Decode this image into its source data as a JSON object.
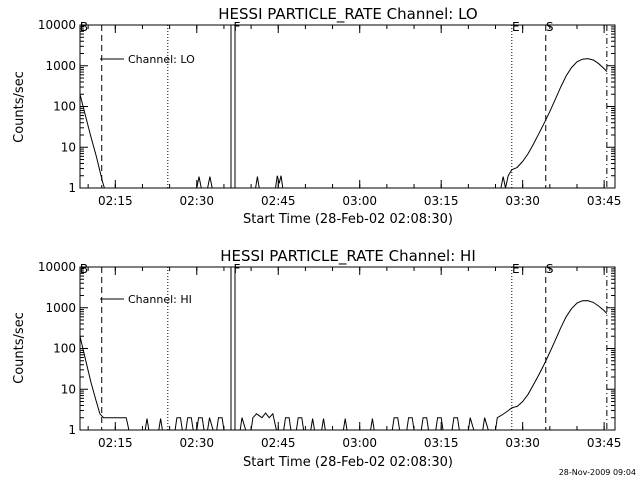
{
  "chart_data": [
    {
      "type": "line",
      "title": "HESSI PARTICLE_RATE Channel: LO",
      "xlabel": "Start Time (28-Feb-02 02:08:30)",
      "ylabel": "Counts/sec",
      "yscale": "log",
      "ylim": [
        1,
        10000
      ],
      "xlim_minutes_after_start": [
        0,
        98.5
      ],
      "x_ticks": [
        "02:15",
        "02:30",
        "02:45",
        "03:00",
        "03:15",
        "03:30",
        "03:45"
      ],
      "y_ticks": [
        "1",
        "10",
        "100",
        "1000",
        "10000"
      ],
      "legend": {
        "label": "Channel: LO",
        "placement": "top-left"
      },
      "markers": [
        {
          "label": "B",
          "style": "dashed",
          "time": "02:08:30"
        },
        {
          "label": "",
          "style": "dashed",
          "time": "02:12:30"
        },
        {
          "label": "",
          "style": "dotted",
          "time": "02:24:40"
        },
        {
          "label": "F",
          "style": "solid-double",
          "time": "02:36:40"
        },
        {
          "label": "E",
          "style": "dotted",
          "time": "03:28:00"
        },
        {
          "label": "S",
          "style": "dashed",
          "time": "03:34:15"
        },
        {
          "label": "",
          "style": "dash-dot",
          "time": "03:45:30"
        }
      ],
      "series": [
        {
          "values": [
            [
              "02:08:30",
              200
            ],
            [
              "02:09:30",
              60
            ],
            [
              "02:10:30",
              18
            ],
            [
              "02:11:30",
              6
            ],
            [
              "02:12:10",
              2.6
            ],
            [
              "02:12:40",
              1.4
            ],
            [
              "02:13:00",
              1.0
            ],
            [
              "02:30:00",
              1
            ],
            [
              "02:30:25",
              1.9
            ],
            [
              "02:30:50",
              1
            ],
            [
              "02:32:00",
              1
            ],
            [
              "02:32:25",
              1.9
            ],
            [
              "02:32:50",
              1
            ],
            [
              "02:40:50",
              1
            ],
            [
              "02:41:10",
              1.9
            ],
            [
              "02:41:30",
              1
            ],
            [
              "02:44:30",
              1
            ],
            [
              "02:44:50",
              2
            ],
            [
              "02:45:10",
              1.3
            ],
            [
              "02:45:30",
              2
            ],
            [
              "02:45:50",
              1
            ],
            [
              "03:26:00",
              1
            ],
            [
              "03:26:25",
              1.9
            ],
            [
              "03:26:50",
              1
            ],
            [
              "03:27:20",
              2
            ],
            [
              "03:28:00",
              2.8
            ],
            [
              "03:29:00",
              3.2
            ],
            [
              "03:30:00",
              4.5
            ],
            [
              "03:31:00",
              7
            ],
            [
              "03:32:00",
              12
            ],
            [
              "03:33:00",
              22
            ],
            [
              "03:34:00",
              40
            ],
            [
              "03:35:00",
              75
            ],
            [
              "03:36:00",
              150
            ],
            [
              "03:37:00",
              300
            ],
            [
              "03:38:00",
              560
            ],
            [
              "03:39:00",
              900
            ],
            [
              "03:40:00",
              1250
            ],
            [
              "03:41:00",
              1450
            ],
            [
              "03:42:00",
              1500
            ],
            [
              "03:43:00",
              1380
            ],
            [
              "03:44:00",
              1120
            ],
            [
              "03:45:00",
              850
            ],
            [
              "03:45:30",
              720
            ]
          ]
        }
      ]
    },
    {
      "type": "line",
      "title": "HESSI PARTICLE_RATE Channel: HI",
      "xlabel": "Start Time (28-Feb-02 02:08:30)",
      "ylabel": "Counts/sec",
      "yscale": "log",
      "ylim": [
        1,
        10000
      ],
      "xlim_minutes_after_start": [
        0,
        98.5
      ],
      "x_ticks": [
        "02:15",
        "02:30",
        "02:45",
        "03:00",
        "03:15",
        "03:30",
        "03:45"
      ],
      "y_ticks": [
        "1",
        "10",
        "100",
        "1000",
        "10000"
      ],
      "legend": {
        "label": "Channel: HI",
        "placement": "top-left"
      },
      "markers": [
        {
          "label": "B",
          "style": "dashed",
          "time": "02:08:30"
        },
        {
          "label": "",
          "style": "dashed",
          "time": "02:12:30"
        },
        {
          "label": "",
          "style": "dotted",
          "time": "02:24:40"
        },
        {
          "label": "F",
          "style": "solid-double",
          "time": "02:36:40"
        },
        {
          "label": "E",
          "style": "dotted",
          "time": "03:28:00"
        },
        {
          "label": "S",
          "style": "dashed",
          "time": "03:34:15"
        },
        {
          "label": "",
          "style": "dash-dot",
          "time": "03:45:30"
        }
      ],
      "series": [
        {
          "values": [
            [
              "02:08:30",
              200
            ],
            [
              "02:09:30",
              55
            ],
            [
              "02:10:30",
              15
            ],
            [
              "02:11:30",
              5
            ],
            [
              "02:12:10",
              2.5
            ],
            [
              "02:12:50",
              2
            ],
            [
              "02:17:00",
              2
            ],
            [
              "02:17:30",
              1
            ],
            [
              "02:20:30",
              1
            ],
            [
              "02:20:50",
              1.9
            ],
            [
              "02:21:10",
              1
            ],
            [
              "02:23:00",
              1
            ],
            [
              "02:23:20",
              1.9
            ],
            [
              "02:23:40",
              1
            ],
            [
              "02:26:00",
              1
            ],
            [
              "02:26:20",
              2
            ],
            [
              "02:27:00",
              2
            ],
            [
              "02:27:20",
              1
            ],
            [
              "02:28:00",
              1
            ],
            [
              "02:28:20",
              2
            ],
            [
              "02:29:00",
              2
            ],
            [
              "02:29:20",
              1
            ],
            [
              "02:30:00",
              1
            ],
            [
              "02:30:20",
              2
            ],
            [
              "02:31:00",
              2
            ],
            [
              "02:31:20",
              1
            ],
            [
              "02:32:00",
              1
            ],
            [
              "02:32:20",
              2
            ],
            [
              "02:33:00",
              1
            ],
            [
              "02:33:40",
              1
            ],
            [
              "02:34:00",
              2
            ],
            [
              "02:34:40",
              2
            ],
            [
              "02:35:00",
              1
            ],
            [
              "02:38:00",
              1
            ],
            [
              "02:38:20",
              2
            ],
            [
              "02:39:00",
              1
            ],
            [
              "02:40:00",
              1
            ],
            [
              "02:40:20",
              2
            ],
            [
              "02:41:00",
              2.5
            ],
            [
              "02:42:00",
              2
            ],
            [
              "02:42:40",
              2.6
            ],
            [
              "02:43:20",
              2
            ],
            [
              "02:44:00",
              2.5
            ],
            [
              "02:44:40",
              1
            ],
            [
              "02:46:00",
              1
            ],
            [
              "02:46:20",
              2
            ],
            [
              "02:47:00",
              2
            ],
            [
              "02:47:20",
              1
            ],
            [
              "02:48:20",
              1
            ],
            [
              "02:48:40",
              2
            ],
            [
              "02:49:20",
              2
            ],
            [
              "02:49:40",
              1
            ],
            [
              "02:51:00",
              1
            ],
            [
              "02:51:20",
              1.9
            ],
            [
              "02:51:40",
              1
            ],
            [
              "02:53:00",
              1
            ],
            [
              "02:53:20",
              1.9
            ],
            [
              "02:53:40",
              1
            ],
            [
              "02:57:00",
              1
            ],
            [
              "02:57:20",
              1.9
            ],
            [
              "02:57:40",
              1
            ],
            [
              "03:02:00",
              1
            ],
            [
              "03:02:20",
              1.9
            ],
            [
              "03:02:40",
              1
            ],
            [
              "03:06:00",
              1
            ],
            [
              "03:06:20",
              2
            ],
            [
              "03:07:00",
              2
            ],
            [
              "03:07:20",
              1
            ],
            [
              "03:08:40",
              1
            ],
            [
              "03:09:00",
              2
            ],
            [
              "03:09:40",
              2
            ],
            [
              "03:10:00",
              1
            ],
            [
              "03:11:20",
              1
            ],
            [
              "03:11:40",
              2
            ],
            [
              "03:12:20",
              2
            ],
            [
              "03:12:40",
              1
            ],
            [
              "03:14:00",
              1
            ],
            [
              "03:14:20",
              2
            ],
            [
              "03:15:00",
              2
            ],
            [
              "03:15:20",
              1
            ],
            [
              "03:17:00",
              1
            ],
            [
              "03:17:20",
              2
            ],
            [
              "03:18:00",
              2
            ],
            [
              "03:18:20",
              1
            ],
            [
              "03:20:00",
              1
            ],
            [
              "03:20:20",
              2
            ],
            [
              "03:21:00",
              1
            ],
            [
              "03:22:40",
              1
            ],
            [
              "03:23:00",
              2
            ],
            [
              "03:23:40",
              1
            ],
            [
              "03:25:00",
              1
            ],
            [
              "03:25:20",
              2
            ],
            [
              "03:26:20",
              2.4
            ],
            [
              "03:27:20",
              3
            ],
            [
              "03:28:00",
              3.5
            ],
            [
              "03:29:00",
              3.8
            ],
            [
              "03:30:00",
              5
            ],
            [
              "03:31:00",
              7.5
            ],
            [
              "03:32:00",
              13
            ],
            [
              "03:33:00",
              23
            ],
            [
              "03:34:00",
              42
            ],
            [
              "03:35:00",
              80
            ],
            [
              "03:36:00",
              160
            ],
            [
              "03:37:00",
              320
            ],
            [
              "03:38:00",
              600
            ],
            [
              "03:39:00",
              950
            ],
            [
              "03:40:00",
              1300
            ],
            [
              "03:41:00",
              1480
            ],
            [
              "03:42:00",
              1500
            ],
            [
              "03:43:00",
              1350
            ],
            [
              "03:44:00",
              1100
            ],
            [
              "03:45:00",
              850
            ],
            [
              "03:45:30",
              720
            ]
          ]
        }
      ]
    }
  ],
  "timestamp": "28-Nov-2009 09:04"
}
